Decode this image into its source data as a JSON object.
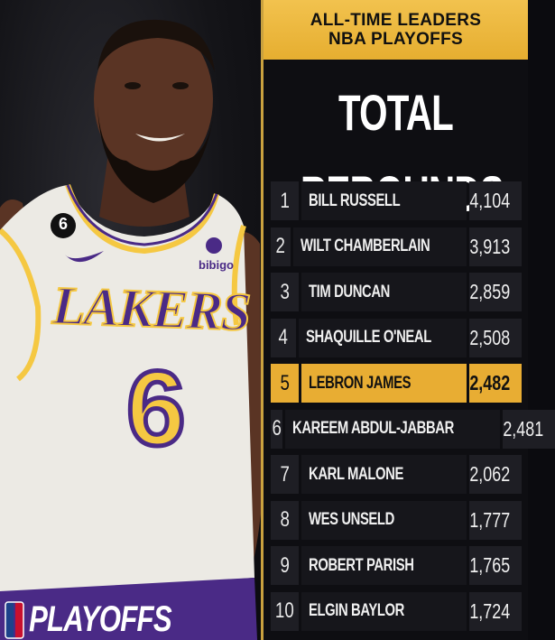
{
  "header": {
    "line1": "ALL-TIME LEADERS",
    "line2": "NBA PLAYOFFS"
  },
  "title": "TOTAL REBOUNDS",
  "jersey": {
    "team": "LAKERS",
    "number": "6",
    "patch_number": "6",
    "sponsor": "bibigo"
  },
  "branding": {
    "playoffs_word": "PLAYOFFS"
  },
  "colors": {
    "gold": "#e8ad33",
    "lakers_purple": "#4a2a86",
    "lakers_gold": "#f5c842"
  },
  "highlight_rank": 5,
  "leaders": [
    {
      "rank": "1",
      "name": "BILL RUSSELL",
      "value": "4,104"
    },
    {
      "rank": "2",
      "name": "WILT CHAMBERLAIN",
      "value": "3,913"
    },
    {
      "rank": "3",
      "name": "TIM DUNCAN",
      "value": "2,859"
    },
    {
      "rank": "4",
      "name": "SHAQUILLE O'NEAL",
      "value": "2,508"
    },
    {
      "rank": "5",
      "name": "LEBRON JAMES",
      "value": "2,482"
    },
    {
      "rank": "6",
      "name": "KAREEM ABDUL-JABBAR",
      "value": "2,481"
    },
    {
      "rank": "7",
      "name": "KARL MALONE",
      "value": "2,062"
    },
    {
      "rank": "8",
      "name": "WES UNSELD",
      "value": "1,777"
    },
    {
      "rank": "9",
      "name": "ROBERT PARISH",
      "value": "1,765"
    },
    {
      "rank": "10",
      "name": "ELGIN BAYLOR",
      "value": "1,724"
    }
  ]
}
